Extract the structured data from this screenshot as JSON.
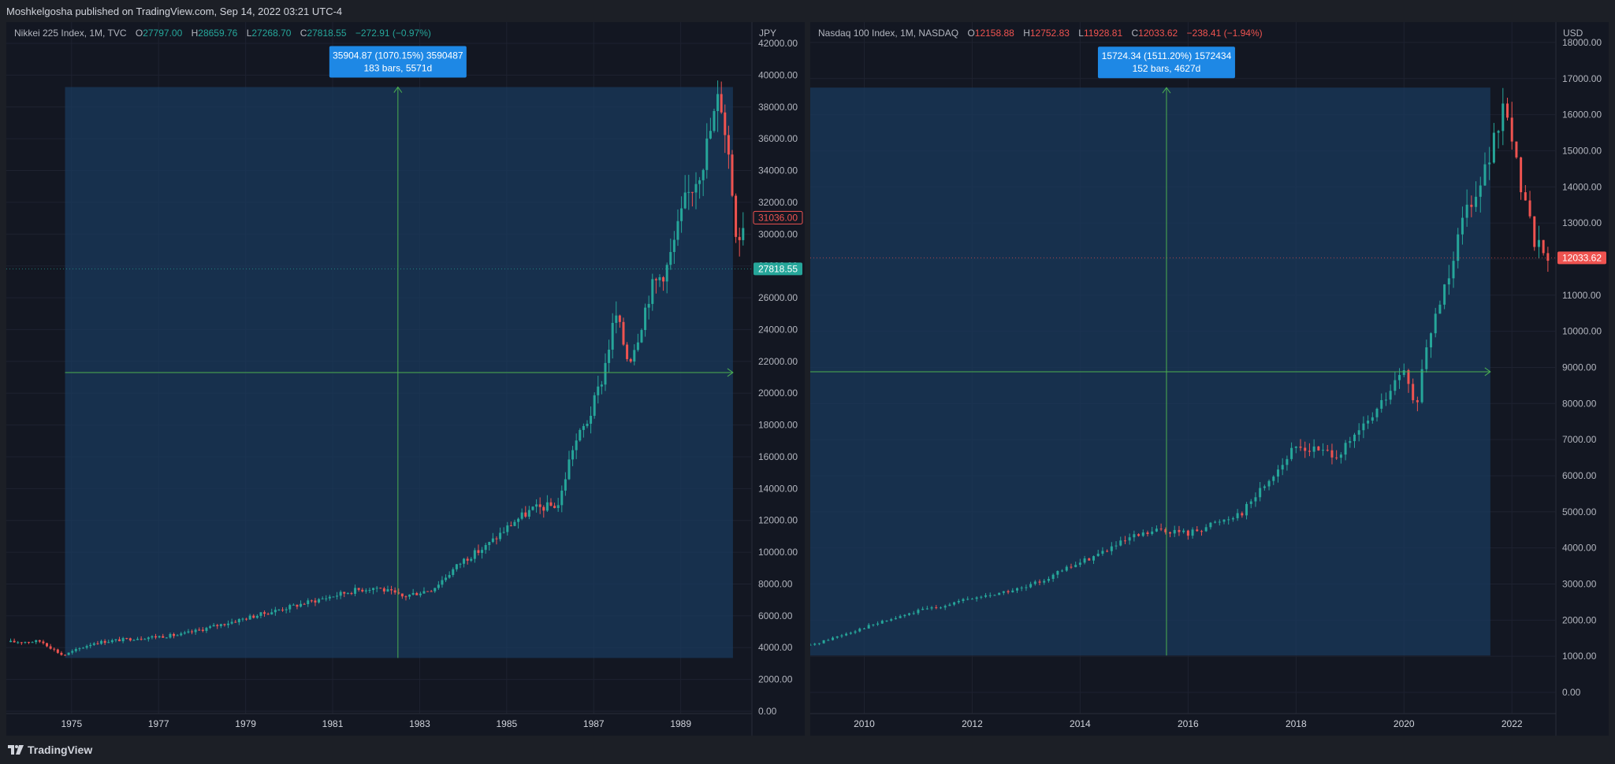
{
  "header": {
    "publisher_line": "Moshkelgosha published on TradingView.com, Sep 14, 2022 03:21 UTC-4"
  },
  "footer": {
    "brand": "TradingView"
  },
  "colors": {
    "background": "#131722",
    "up": "#26a69a",
    "down": "#ef5350",
    "measure_fill": "#1a3a5c",
    "measure_line": "#4caf50",
    "label_blue": "#1e88e5"
  },
  "left": {
    "title": "Nikkei 225 Index, 1M, TVC",
    "o_label": "O",
    "o": "27797.00",
    "h_label": "H",
    "h": "28659.76",
    "l_label": "L",
    "l": "27268.70",
    "c_label": "C",
    "c": "27818.55",
    "change": "−272.91 (−0.97%)",
    "unit": "JPY",
    "last_price": "27818.55",
    "marker_price": "31036.00"
  },
  "right": {
    "title": "Nasdaq 100 Index, 1M, NASDAQ",
    "o_label": "O",
    "o": "12158.88",
    "h_label": "H",
    "h": "12752.83",
    "l_label": "L",
    "l": "11928.81",
    "c_label": "C",
    "c": "12033.62",
    "change": "−238.41 (−1.94%)",
    "unit": "USD",
    "last_price": "12033.62"
  },
  "chart_data": [
    {
      "type": "candlestick",
      "title": "Nikkei 225 Index, 1M, TVC",
      "ylabel": "JPY",
      "ylim": [
        0,
        42000
      ],
      "x_range": [
        1973.5,
        1990.6
      ],
      "y_ticks": [
        "0.00",
        "2000.00",
        "4000.00",
        "6000.00",
        "8000.00",
        "10000.00",
        "12000.00",
        "14000.00",
        "16000.00",
        "18000.00",
        "20000.00",
        "22000.00",
        "24000.00",
        "26000.00",
        "28000.00",
        "30000.00",
        "32000.00",
        "34000.00",
        "36000.00",
        "38000.00",
        "40000.00",
        "42000.00"
      ],
      "x_ticks": [
        "1975",
        "1977",
        "1979",
        "1981",
        "1983",
        "1985",
        "1987",
        "1989"
      ],
      "path": [
        [
          1973.6,
          4350
        ],
        [
          1974.3,
          4400
        ],
        [
          1974.8,
          3500
        ],
        [
          1975.5,
          4300
        ],
        [
          1976.5,
          4600
        ],
        [
          1977.5,
          4800
        ],
        [
          1978.5,
          5500
        ],
        [
          1979.5,
          6200
        ],
        [
          1980.5,
          6900
        ],
        [
          1981.5,
          7600
        ],
        [
          1982.0,
          7800
        ],
        [
          1982.6,
          7200
        ],
        [
          1983.3,
          7700
        ],
        [
          1984.0,
          9500
        ],
        [
          1984.5,
          10300
        ],
        [
          1985.2,
          12000
        ],
        [
          1985.6,
          12700
        ],
        [
          1986.2,
          13000
        ],
        [
          1986.5,
          16500
        ],
        [
          1986.9,
          18500
        ],
        [
          1987.2,
          21000
        ],
        [
          1987.5,
          25000
        ],
        [
          1987.8,
          22000
        ],
        [
          1988.0,
          23500
        ],
        [
          1988.3,
          26500
        ],
        [
          1988.7,
          28000
        ],
        [
          1989.1,
          32000
        ],
        [
          1989.5,
          34500
        ],
        [
          1989.9,
          38900
        ],
        [
          1990.1,
          35000
        ],
        [
          1990.3,
          29500
        ],
        [
          1990.5,
          31500
        ]
      ],
      "last_close": 27818.55,
      "marker": 31036.0,
      "measure": {
        "label_line1": "35904.87 (1070.15%) 3590487",
        "label_line2": "183 bars, 5571d",
        "x_start": 1974.85,
        "x_end": 1990.2,
        "y_low": 3350,
        "y_high": 39250,
        "x_mid": 1982.5,
        "y_mid": 21300
      }
    },
    {
      "type": "candlestick",
      "title": "Nasdaq 100 Index, 1M, NASDAQ",
      "ylabel": "USD",
      "ylim": [
        0,
        18500
      ],
      "x_range": [
        2009.0,
        2022.8
      ],
      "y_ticks": [
        "0.00",
        "1000.00",
        "2000.00",
        "3000.00",
        "4000.00",
        "5000.00",
        "6000.00",
        "7000.00",
        "8000.00",
        "9000.00",
        "10000.00",
        "11000.00",
        "12000.00",
        "13000.00",
        "14000.00",
        "15000.00",
        "16000.00",
        "17000.00",
        "18000.00"
      ],
      "x_ticks": [
        "2010",
        "2012",
        "2014",
        "2016",
        "2018",
        "2020",
        "2022"
      ],
      "path": [
        [
          2009.0,
          1300
        ],
        [
          2010.0,
          1800
        ],
        [
          2011.0,
          2250
        ],
        [
          2012.0,
          2600
        ],
        [
          2013.0,
          2900
        ],
        [
          2014.0,
          3600
        ],
        [
          2015.0,
          4300
        ],
        [
          2015.5,
          4500
        ],
        [
          2016.0,
          4400
        ],
        [
          2016.5,
          4700
        ],
        [
          2017.0,
          5000
        ],
        [
          2018.0,
          6800
        ],
        [
          2018.8,
          6600
        ],
        [
          2019.0,
          6900
        ],
        [
          2019.5,
          7800
        ],
        [
          2020.0,
          8900
        ],
        [
          2020.2,
          7800
        ],
        [
          2020.5,
          10000
        ],
        [
          2020.9,
          12000
        ],
        [
          2021.0,
          12900
        ],
        [
          2021.5,
          14500
        ],
        [
          2021.9,
          16300
        ],
        [
          2022.1,
          14500
        ],
        [
          2022.4,
          12600
        ],
        [
          2022.7,
          12033
        ]
      ],
      "last_close": 12033.62,
      "measure": {
        "label_line1": "15724.34 (1511.20%) 1572434",
        "label_line2": "152 bars, 4627d",
        "x_start": 2009.0,
        "x_end": 2021.6,
        "y_low": 1020,
        "y_high": 16750,
        "x_mid": 2015.6,
        "y_mid": 8880
      }
    }
  ]
}
